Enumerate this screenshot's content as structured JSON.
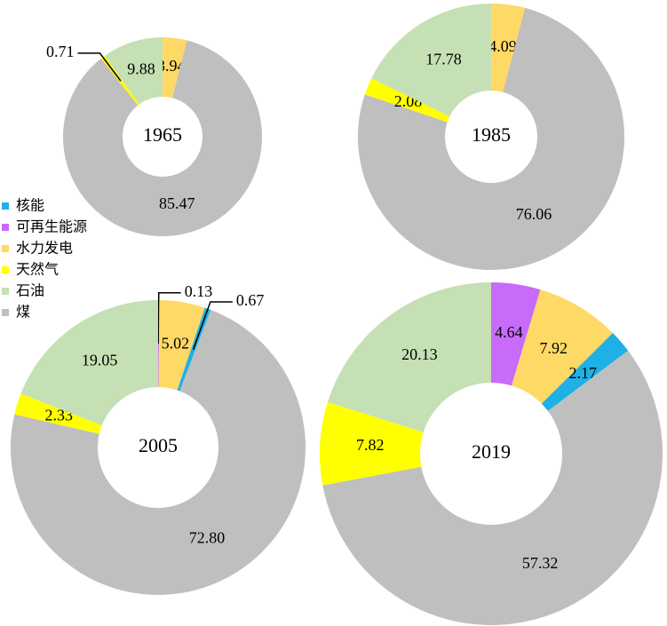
{
  "legend": {
    "categories": [
      "核能",
      "可再生能源",
      "水力发电",
      "天然气",
      "石油",
      "煤"
    ],
    "colors": [
      "#1fb0e6",
      "#c86bfa",
      "#ffd966",
      "#ffff00",
      "#c5e0b4",
      "#bfbfbf"
    ]
  },
  "chart_data": [
    {
      "type": "donut",
      "title": "1965",
      "values": [
        null,
        null,
        3.94,
        0.71,
        9.88,
        85.47
      ],
      "value_labels": [
        null,
        null,
        "3.94",
        "0.71",
        "9.88",
        "85.47"
      ]
    },
    {
      "type": "donut",
      "title": "1985",
      "values": [
        null,
        null,
        4.09,
        2.08,
        17.78,
        76.06
      ],
      "value_labels": [
        null,
        null,
        "4.09",
        "2.08",
        "17.78",
        "76.06"
      ]
    },
    {
      "type": "donut",
      "title": "2005",
      "values": [
        0.67,
        0.13,
        5.02,
        2.33,
        19.05,
        72.8
      ],
      "value_labels": [
        "0.67",
        "0.13",
        "5.02",
        "2.33",
        "19.05",
        "72.80"
      ]
    },
    {
      "type": "donut",
      "title": "2019",
      "values": [
        2.17,
        4.64,
        7.92,
        7.82,
        20.13,
        57.32
      ],
      "value_labels": [
        "2.17",
        "4.64",
        "7.92",
        "7.82",
        "20.13",
        "57.32"
      ]
    }
  ]
}
